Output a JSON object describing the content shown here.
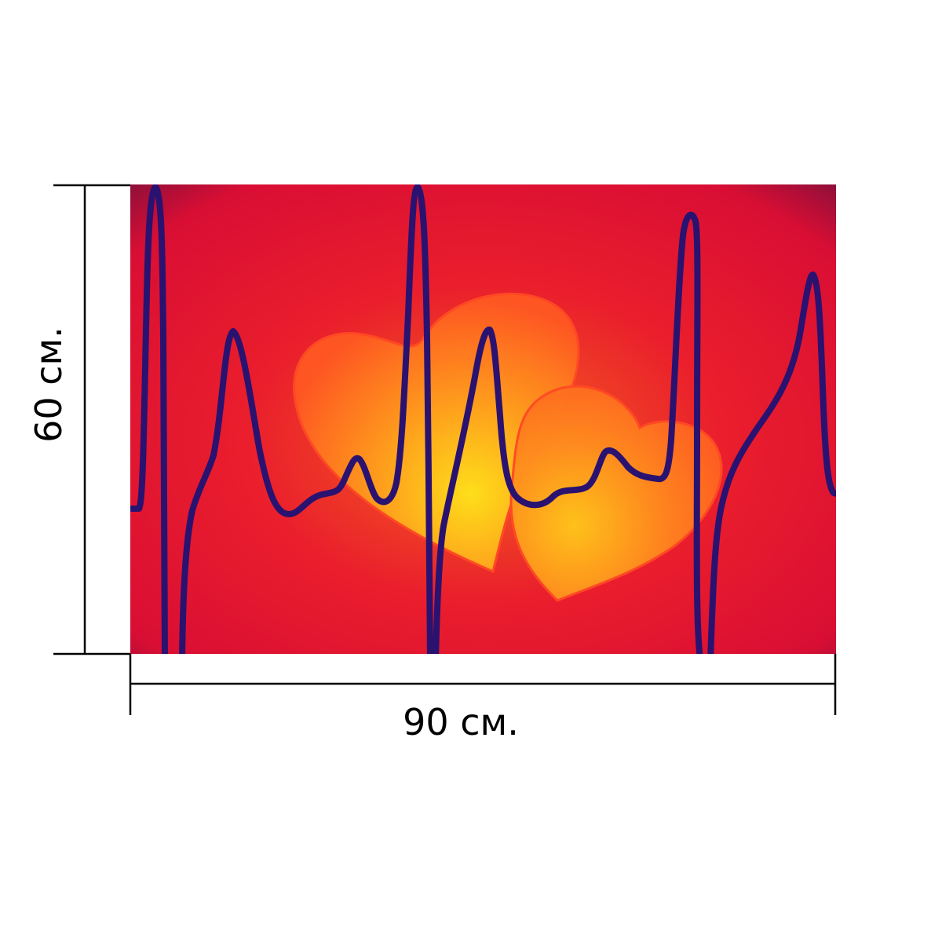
{
  "dimensions": {
    "height_label": "60 см.",
    "width_label": "90 см."
  },
  "artwork": {
    "background_colors": [
      "#e8102f",
      "#f05a22",
      "#8a0f3a"
    ],
    "heart_colors": [
      "#ff7a1f",
      "#ffd21a"
    ],
    "ecg_line_color": "#2a1270"
  }
}
